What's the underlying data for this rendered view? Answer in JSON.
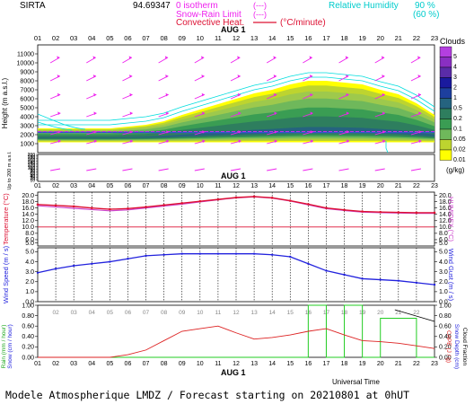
{
  "header": {
    "site": "SIRTA",
    "value": "94.69347",
    "legend_isotherm": "0 isotherm",
    "legend_snow": "Snow-Rain Limit",
    "legend_convective": "Convective Heat.",
    "dash_label": "(---)",
    "unit_label": "(°C/minute)",
    "legend_rh": "Relative Humidity",
    "rh_90": "90 %",
    "rh_60": "(60 %)",
    "date_label": "AUG  1"
  },
  "hours": [
    "01",
    "02",
    "03",
    "04",
    "05",
    "06",
    "07",
    "08",
    "09",
    "10",
    "11",
    "12",
    "13",
    "14",
    "15",
    "16",
    "17",
    "18",
    "19",
    "20",
    "21",
    "22",
    "23"
  ],
  "labels": {
    "height_ylabel": "Height (m a.s.l.)",
    "height_sublabel": "Up to 200 m a.s.l.",
    "clouds_title": "Clouds",
    "clouds_unit": "(g/kg)",
    "temp_ylabel": "Temperature (°C)",
    "humidex_ylabel": "HUMIDEX (°C)",
    "wind_ylabel": "Wind Speed (m / s)",
    "gust_ylabel": "Wind Gust (m / s)",
    "rain_ylabel": "Rain (mm / hour)",
    "snow_ylabel": "Snow (cm / hour)",
    "cape_ylabel": "CAPE (J / g)",
    "snowdepth_ylabel": "Snow Depth (cm)",
    "cloudfrac_ylabel": "Cloud Fraction",
    "universal_time": "Universal Time",
    "footer": "Modele Atmospherique LMDZ / Forecast starting on 20210801 at 0hUT"
  },
  "colors": {
    "cloud_scale": [
      "#ffff00",
      "#bdd42f",
      "#9ec94c",
      "#6fb85b",
      "#3a9d53",
      "#2e7e5e",
      "#25637f",
      "#1d3f9e",
      "#1a1a9e",
      "#5a2ca8",
      "#8a2fc2",
      "#b43fe0"
    ],
    "temp_line": "#dd1133",
    "humidex_line": "#cc44cc",
    "wind_line": "#2222dd",
    "cape_line": "#dd2222",
    "cloud_frac_line": "#22cc22",
    "wind_arrow": "#ee22ee",
    "rh_contour": "#00dddd"
  },
  "chart_data": [
    {
      "type": "heatmap",
      "name": "cloud-content",
      "x": [
        1,
        2,
        3,
        4,
        5,
        6,
        7,
        8,
        9,
        10,
        11,
        12,
        13,
        14,
        15,
        16,
        17,
        18,
        19,
        20,
        21,
        22,
        23
      ],
      "y_ticks": [
        1000,
        2000,
        3000,
        4000,
        5000,
        6000,
        7000,
        8000,
        9000,
        10000,
        11000
      ],
      "y_low_ticks": [
        10,
        20,
        30,
        40,
        50,
        60,
        70,
        80,
        90,
        100,
        110,
        120,
        130,
        140,
        150,
        160,
        170,
        180,
        190,
        200
      ],
      "ylim": [
        0,
        12000
      ],
      "legend_levels": [
        "5",
        "4",
        "3",
        "2",
        "1",
        "0.5",
        "0.2",
        "0.1",
        "0.05",
        "0.02",
        "0.01"
      ],
      "cloud_base_m": 1400,
      "cloud_top_m": [
        2700,
        2700,
        2700,
        2700,
        2700,
        2900,
        3100,
        3500,
        4200,
        4800,
        5400,
        6000,
        6600,
        7000,
        7600,
        8000,
        8000,
        7800,
        7600,
        7000,
        6500,
        5500,
        4200
      ],
      "wind_barbs": "arrows at every hour and level"
    },
    {
      "type": "line",
      "name": "temperature",
      "x": [
        1,
        2,
        3,
        4,
        5,
        6,
        7,
        8,
        9,
        10,
        11,
        12,
        13,
        14,
        15,
        16,
        17,
        18,
        19,
        20,
        21,
        22,
        23
      ],
      "series": [
        {
          "name": "Temperature",
          "values": [
            17.1,
            16.8,
            16.5,
            16.0,
            15.6,
            15.8,
            16.3,
            16.9,
            17.5,
            18.1,
            18.7,
            19.3,
            19.6,
            19.2,
            18.3,
            17.2,
            16.0,
            15.4,
            14.9,
            14.7,
            14.6,
            14.5,
            14.5
          ]
        },
        {
          "name": "HUMIDEX",
          "values": [
            16.7,
            16.3,
            15.9,
            15.5,
            15.1,
            15.4,
            16.0,
            16.6,
            17.2,
            17.9,
            18.6,
            19.2,
            19.5,
            19.1,
            18.2,
            17.0,
            15.8,
            15.2,
            14.7,
            14.5,
            14.4,
            14.3,
            14.3
          ]
        }
      ],
      "ylim": [
        4,
        21
      ],
      "y_ticks": [
        5.0,
        6.0,
        8.0,
        10.0,
        12.0,
        14.0,
        16.0,
        18.0,
        20.0
      ],
      "reference_line": 10.0
    },
    {
      "type": "line",
      "name": "wind-speed",
      "x": [
        1,
        2,
        3,
        4,
        5,
        6,
        7,
        8,
        9,
        10,
        11,
        12,
        13,
        14,
        15,
        16,
        17,
        18,
        19,
        20,
        21,
        22,
        23
      ],
      "series": [
        {
          "name": "Wind Speed",
          "values": [
            2.9,
            3.3,
            3.6,
            3.8,
            4.0,
            4.3,
            4.6,
            4.7,
            4.8,
            4.8,
            4.8,
            4.8,
            4.8,
            4.7,
            4.5,
            3.8,
            3.1,
            2.7,
            2.3,
            2.2,
            2.1,
            1.9,
            1.7
          ]
        }
      ],
      "ylim": [
        0,
        5.4
      ],
      "y_ticks": [
        0.0,
        1.0,
        2.0,
        3.0,
        4.0,
        5.0
      ]
    },
    {
      "type": "line",
      "name": "precip-cape",
      "x": [
        1,
        2,
        3,
        4,
        5,
        6,
        7,
        8,
        9,
        10,
        11,
        12,
        13,
        14,
        15,
        16,
        17,
        18,
        19,
        20,
        21,
        22,
        23
      ],
      "series": [
        {
          "name": "CAPE",
          "values": [
            0.0,
            0.0,
            0.0,
            0.0,
            0.0,
            0.05,
            0.14,
            0.32,
            0.5,
            0.55,
            0.6,
            0.47,
            0.35,
            0.38,
            0.43,
            0.5,
            0.55,
            0.43,
            0.32,
            0.3,
            0.27,
            0.22,
            0.17
          ]
        },
        {
          "name": "Cloud Fraction",
          "values": [
            0,
            0,
            0,
            0,
            0,
            0,
            0,
            0,
            0,
            0,
            0,
            0,
            0,
            0,
            0,
            1,
            0,
            1,
            0,
            0.75,
            0.75,
            0,
            0
          ]
        }
      ],
      "ylim": [
        0,
        1.0
      ],
      "y_ticks": [
        0.0,
        0.2,
        0.4,
        0.6,
        0.8,
        1.0
      ]
    }
  ]
}
